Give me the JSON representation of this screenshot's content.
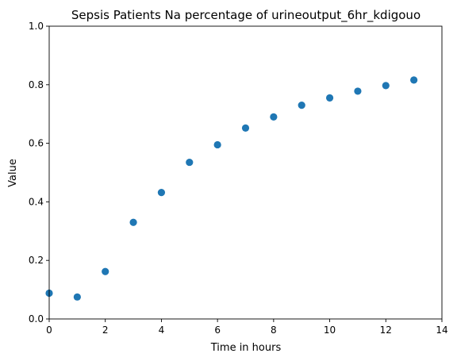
{
  "chart_data": {
    "type": "scatter",
    "title": "Sepsis Patients Na percentage of urineoutput_6hr_kdigouo",
    "xlabel": "Time in hours",
    "ylabel": "Value",
    "xlim": [
      0,
      14
    ],
    "ylim": [
      0,
      1.0
    ],
    "xticks": [
      0,
      2,
      4,
      6,
      8,
      10,
      12,
      14
    ],
    "xtick_labels": [
      "0",
      "2",
      "4",
      "6",
      "8",
      "10",
      "12",
      "14"
    ],
    "yticks": [
      0,
      0.2,
      0.4,
      0.6,
      0.8,
      1.0
    ],
    "ytick_labels": [
      "0.0",
      "0.2",
      "0.4",
      "0.6",
      "0.8",
      "1.0"
    ],
    "grid": false,
    "legend": false,
    "series": [
      {
        "color": "#1f77b4",
        "x": [
          0,
          1,
          2,
          3,
          4,
          5,
          6,
          7,
          8,
          9,
          10,
          11,
          12,
          13
        ],
        "y": [
          0.088,
          0.075,
          0.162,
          0.33,
          0.432,
          0.535,
          0.595,
          0.652,
          0.69,
          0.73,
          0.755,
          0.778,
          0.797,
          0.816
        ]
      }
    ]
  }
}
